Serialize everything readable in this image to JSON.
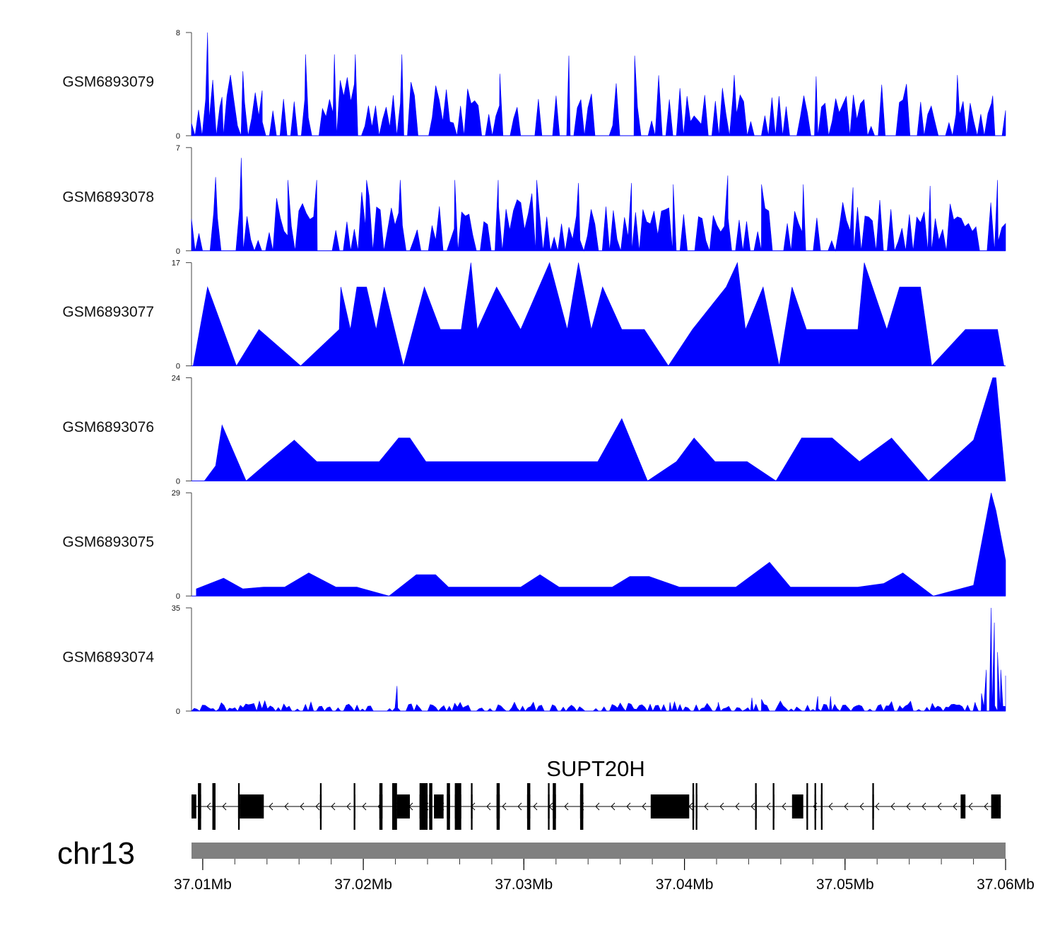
{
  "chart_data": {
    "type": "area",
    "title": "",
    "chromosome": "chr13",
    "gene": "SUPT20H",
    "x_unit": "Mb",
    "xlim": [
      37.0093,
      37.06
    ],
    "x_ticks": [
      "37.01Mb",
      "37.02Mb",
      "37.03Mb",
      "37.04Mb",
      "37.05Mb",
      "37.06Mb"
    ],
    "x_tick_values": [
      37.01,
      37.02,
      37.03,
      37.04,
      37.05,
      37.06
    ],
    "colors": {
      "coverage": "#0000ff",
      "gene": "#000000",
      "ideogram": "#808080"
    },
    "series": [
      {
        "name": "GSM6893079",
        "ymax": 8,
        "yticks": [
          "0",
          "8"
        ],
        "seed": 79,
        "density": 230,
        "base": 1.6
      },
      {
        "name": "GSM6893078",
        "ymax": 7,
        "yticks": [
          "0",
          "7"
        ],
        "seed": 78,
        "density": 220,
        "base": 1.5
      },
      {
        "name": "GSM6893077",
        "ymax": 17,
        "yticks": [
          "0",
          "17"
        ],
        "seed": 77,
        "density": 0,
        "base": 0
      },
      {
        "name": "GSM6893076",
        "ymax": 24,
        "yticks": [
          "0",
          "24"
        ],
        "seed": 76,
        "density": 0,
        "base": 0
      },
      {
        "name": "GSM6893075",
        "ymax": 29,
        "yticks": [
          "0",
          "29"
        ],
        "seed": 75,
        "density": 0,
        "base": 0
      },
      {
        "name": "GSM6893074",
        "ymax": 35,
        "yticks": [
          "0",
          "35"
        ],
        "seed": 74,
        "density": 300,
        "base": 1.2
      }
    ],
    "peaks": {
      "GSM6893079": [
        [
          37.0103,
          8
        ],
        [
          37.0112,
          3
        ],
        [
          37.0125,
          5
        ],
        [
          37.0137,
          3.5
        ],
        [
          37.0164,
          6.3
        ],
        [
          37.0182,
          6.3
        ],
        [
          37.0195,
          6.3
        ],
        [
          37.0224,
          6.3
        ],
        [
          37.0285,
          4.8
        ],
        [
          37.0328,
          6.2
        ],
        [
          37.0369,
          6.2
        ],
        [
          37.0384,
          4.5
        ],
        [
          37.0431,
          4.7
        ],
        [
          37.0482,
          4.6
        ],
        [
          37.057,
          4.7
        ],
        [
          37.0592,
          3.1
        ]
      ],
      "GSM6893078": [
        [
          37.0108,
          5
        ],
        [
          37.0124,
          6.3
        ],
        [
          37.0153,
          4.8
        ],
        [
          37.0171,
          4.8
        ],
        [
          37.0202,
          4.8
        ],
        [
          37.0223,
          4.8
        ],
        [
          37.0257,
          4.8
        ],
        [
          37.0284,
          4.8
        ],
        [
          37.0308,
          4.8
        ],
        [
          37.0334,
          4.6
        ],
        [
          37.0367,
          4.6
        ],
        [
          37.0393,
          4.5
        ],
        [
          37.0427,
          5.1
        ],
        [
          37.0448,
          4.5
        ],
        [
          37.0474,
          4.5
        ],
        [
          37.0505,
          4.3
        ],
        [
          37.0553,
          4.4
        ],
        [
          37.0595,
          4.8
        ]
      ],
      "GSM6893077": [
        [
          37.0094,
          0
        ],
        [
          37.0103,
          13
        ],
        [
          37.0121,
          0
        ],
        [
          37.0135,
          6
        ],
        [
          37.0161,
          0
        ],
        [
          37.0185,
          6
        ],
        [
          37.0186,
          13
        ],
        [
          37.0192,
          6
        ],
        [
          37.0196,
          13
        ],
        [
          37.0202,
          13
        ],
        [
          37.0208,
          6
        ],
        [
          37.0213,
          13
        ],
        [
          37.0225,
          0
        ],
        [
          37.0238,
          13
        ],
        [
          37.0248,
          6
        ],
        [
          37.0261,
          6
        ],
        [
          37.0267,
          17
        ],
        [
          37.0271,
          6
        ],
        [
          37.0283,
          13
        ],
        [
          37.0298,
          6
        ],
        [
          37.0316,
          17
        ],
        [
          37.0327,
          6
        ],
        [
          37.0334,
          17
        ],
        [
          37.0342,
          6
        ],
        [
          37.0349,
          13
        ],
        [
          37.0361,
          6
        ],
        [
          37.0375,
          6
        ],
        [
          37.039,
          0
        ],
        [
          37.0405,
          6
        ],
        [
          37.0426,
          13
        ],
        [
          37.0433,
          17
        ],
        [
          37.0438,
          6
        ],
        [
          37.0449,
          13
        ],
        [
          37.0459,
          0
        ],
        [
          37.0467,
          13
        ],
        [
          37.0476,
          6
        ],
        [
          37.0485,
          6
        ],
        [
          37.0508,
          6
        ],
        [
          37.0512,
          17
        ],
        [
          37.0526,
          6
        ],
        [
          37.0534,
          13
        ],
        [
          37.0547,
          13
        ],
        [
          37.0554,
          0
        ],
        [
          37.0575,
          6
        ],
        [
          37.0585,
          6
        ],
        [
          37.0595,
          6
        ],
        [
          37.0599,
          0
        ]
      ],
      "GSM6893076": [
        [
          37.0101,
          0
        ],
        [
          37.0108,
          3.5
        ],
        [
          37.0112,
          13
        ],
        [
          37.0127,
          0
        ],
        [
          37.0141,
          4.5
        ],
        [
          37.0157,
          9.5
        ],
        [
          37.0171,
          4.5
        ],
        [
          37.0189,
          4.5
        ],
        [
          37.021,
          4.5
        ],
        [
          37.0222,
          10
        ],
        [
          37.0229,
          10
        ],
        [
          37.0239,
          4.5
        ],
        [
          37.0255,
          4.5
        ],
        [
          37.0276,
          4.5
        ],
        [
          37.029,
          4.5
        ],
        [
          37.0304,
          4.5
        ],
        [
          37.0318,
          4.5
        ],
        [
          37.0332,
          4.5
        ],
        [
          37.0346,
          4.5
        ],
        [
          37.0361,
          14.5
        ],
        [
          37.0377,
          0
        ],
        [
          37.0395,
          4.5
        ],
        [
          37.0406,
          10
        ],
        [
          37.0419,
          4.5
        ],
        [
          37.0439,
          4.5
        ],
        [
          37.0457,
          0
        ],
        [
          37.0473,
          10
        ],
        [
          37.0492,
          10
        ],
        [
          37.0509,
          4.5
        ],
        [
          37.0529,
          10
        ],
        [
          37.0552,
          0
        ],
        [
          37.058,
          9.5
        ],
        [
          37.0592,
          24
        ],
        [
          37.0594,
          24
        ],
        [
          37.06,
          0
        ]
      ],
      "GSM6893075": [
        [
          37.0096,
          2
        ],
        [
          37.0113,
          5
        ],
        [
          37.0125,
          2
        ],
        [
          37.0138,
          2.5
        ],
        [
          37.0151,
          2.5
        ],
        [
          37.0166,
          6.5
        ],
        [
          37.0183,
          2.5
        ],
        [
          37.0196,
          2.5
        ],
        [
          37.0216,
          0
        ],
        [
          37.0233,
          6
        ],
        [
          37.0245,
          6
        ],
        [
          37.0253,
          2.5
        ],
        [
          37.0268,
          2.5
        ],
        [
          37.0283,
          2.5
        ],
        [
          37.0298,
          2.5
        ],
        [
          37.031,
          6
        ],
        [
          37.0322,
          2.5
        ],
        [
          37.0339,
          2.5
        ],
        [
          37.0355,
          2.5
        ],
        [
          37.0366,
          5.5
        ],
        [
          37.0378,
          5.5
        ],
        [
          37.0397,
          2.5
        ],
        [
          37.0411,
          2.5
        ],
        [
          37.0432,
          2.5
        ],
        [
          37.0453,
          9.5
        ],
        [
          37.0466,
          2.5
        ],
        [
          37.0478,
          2.5
        ],
        [
          37.0493,
          2.5
        ],
        [
          37.0508,
          2.5
        ],
        [
          37.0524,
          3.5
        ],
        [
          37.0536,
          6.5
        ],
        [
          37.0555,
          0
        ],
        [
          37.058,
          3
        ],
        [
          37.0591,
          29
        ],
        [
          37.0594,
          24
        ],
        [
          37.06,
          10
        ]
      ],
      "GSM6893074": [
        [
          37.0221,
          8.5
        ],
        [
          37.0391,
          3
        ],
        [
          37.0421,
          3
        ],
        [
          37.0442,
          4.5
        ],
        [
          37.0448,
          4
        ],
        [
          37.0483,
          5
        ],
        [
          37.0491,
          5
        ],
        [
          37.0581,
          3
        ],
        [
          37.0585,
          6
        ],
        [
          37.0588,
          14
        ],
        [
          37.0591,
          35
        ],
        [
          37.0593,
          30
        ],
        [
          37.0595,
          20
        ],
        [
          37.0597,
          14
        ],
        [
          37.06,
          12
        ]
      ]
    },
    "gene_model": {
      "strand": "-",
      "exons": [
        [
          37.0093,
          37.0096
        ],
        [
          37.0097,
          37.0099
        ],
        [
          37.0106,
          37.0108
        ],
        [
          37.0122,
          37.0123
        ],
        [
          37.0123,
          37.0138
        ],
        [
          37.0173,
          37.0174
        ],
        [
          37.0194,
          37.0195
        ],
        [
          37.021,
          37.0212
        ],
        [
          37.0218,
          37.0221
        ],
        [
          37.0221,
          37.0229
        ],
        [
          37.0235,
          37.024
        ],
        [
          37.0241,
          37.0243
        ],
        [
          37.0244,
          37.025
        ],
        [
          37.0252,
          37.0254
        ],
        [
          37.0257,
          37.0261
        ],
        [
          37.0267,
          37.0268
        ],
        [
          37.0283,
          37.0285
        ],
        [
          37.0302,
          37.0304
        ],
        [
          37.0315,
          37.0316
        ],
        [
          37.0318,
          37.032
        ],
        [
          37.0335,
          37.0337
        ],
        [
          37.0379,
          37.0403
        ],
        [
          37.0405,
          37.0406
        ],
        [
          37.0407,
          37.0408
        ],
        [
          37.0444,
          37.0445
        ],
        [
          37.0455,
          37.0456
        ],
        [
          37.0467,
          37.0474
        ],
        [
          37.0476,
          37.0477
        ],
        [
          37.0481,
          37.0482
        ],
        [
          37.0485,
          37.0486
        ],
        [
          37.0517,
          37.0518
        ],
        [
          37.0572,
          37.0575
        ],
        [
          37.0591,
          37.0597
        ]
      ],
      "tall_exons": [
        [
          37.0097,
          37.0099
        ],
        [
          37.0106,
          37.0108
        ],
        [
          37.0122,
          37.0123
        ],
        [
          37.0173,
          37.0174
        ],
        [
          37.0194,
          37.0195
        ],
        [
          37.021,
          37.0212
        ],
        [
          37.0218,
          37.0221
        ],
        [
          37.0235,
          37.024
        ],
        [
          37.0241,
          37.0243
        ],
        [
          37.0252,
          37.0254
        ],
        [
          37.0257,
          37.0261
        ],
        [
          37.0267,
          37.0268
        ],
        [
          37.0283,
          37.0285
        ],
        [
          37.0302,
          37.0304
        ],
        [
          37.0315,
          37.0316
        ],
        [
          37.0318,
          37.032
        ],
        [
          37.0335,
          37.0337
        ],
        [
          37.0405,
          37.0406
        ],
        [
          37.0407,
          37.0408
        ],
        [
          37.0444,
          37.0445
        ],
        [
          37.0455,
          37.0456
        ],
        [
          37.0476,
          37.0477
        ],
        [
          37.0481,
          37.0482
        ],
        [
          37.0485,
          37.0486
        ],
        [
          37.0517,
          37.0518
        ]
      ],
      "tx_start": 37.0093,
      "tx_end": 37.0597
    }
  }
}
